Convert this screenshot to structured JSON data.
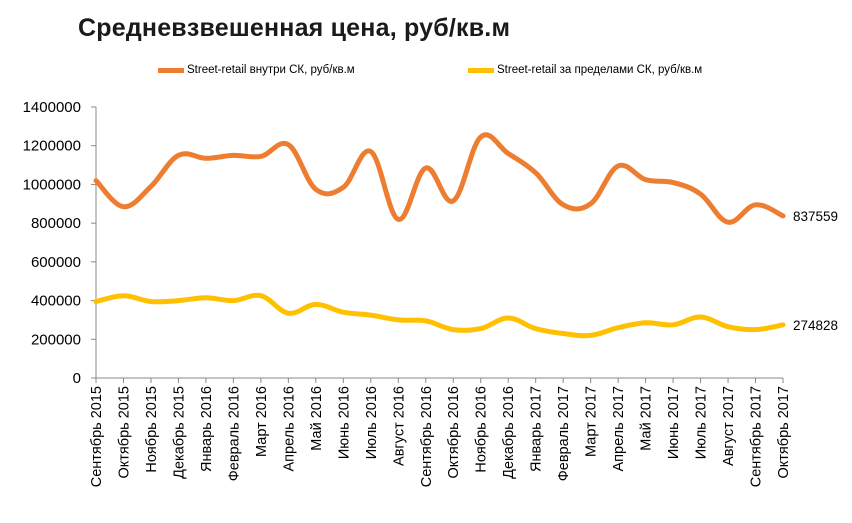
{
  "title": "Средневзвешенная цена, руб/кв.м",
  "chart_data": {
    "type": "line",
    "title": "Средневзвешенная цена, руб/кв.м",
    "xlabel": "",
    "ylabel": "",
    "categories": [
      "Сентябрь 2015",
      "Октябрь 2015",
      "Ноябрь 2015",
      "Декабрь 2015",
      "Январь 2016",
      "Февраль 2016",
      "Март 2016",
      "Апрель 2016",
      "Май 2016",
      "Июнь 2016",
      "Июль 2016",
      "Август 2016",
      "Сентябрь 2016",
      "Октябрь 2016",
      "Ноябрь 2016",
      "Декабрь 2016",
      "Январь 2017",
      "Февраль 2017",
      "Март 2017",
      "Апрель 2017",
      "Май 2017",
      "Июнь 2017",
      "Июль 2017",
      "Август 2017",
      "Сентябрь 2017",
      "Октябрь 2017"
    ],
    "ylim": [
      0,
      1400000
    ],
    "yticks": [
      "0",
      "200000",
      "400000",
      "600000",
      "800000",
      "1000000",
      "1200000",
      "1400000"
    ],
    "legend_position": "top",
    "grid": false,
    "series": [
      {
        "name": "Street-retail внутри СК, руб/кв.м",
        "color": "#ED7D31",
        "values": [
          1020000,
          885000,
          990000,
          1150000,
          1135000,
          1150000,
          1145000,
          1205000,
          975000,
          985000,
          1170000,
          820000,
          1085000,
          915000,
          1245000,
          1160000,
          1060000,
          895000,
          900000,
          1095000,
          1025000,
          1010000,
          950000,
          805000,
          895000,
          837559
        ],
        "end_label": "837559"
      },
      {
        "name": "Street-retail за пределами СК, руб/кв.м",
        "color": "#FFC000",
        "values": [
          395000,
          425000,
          395000,
          400000,
          415000,
          400000,
          425000,
          335000,
          380000,
          340000,
          325000,
          300000,
          295000,
          250000,
          255000,
          310000,
          255000,
          230000,
          220000,
          260000,
          285000,
          275000,
          315000,
          265000,
          250000,
          274828
        ],
        "end_label": "274828"
      }
    ]
  }
}
